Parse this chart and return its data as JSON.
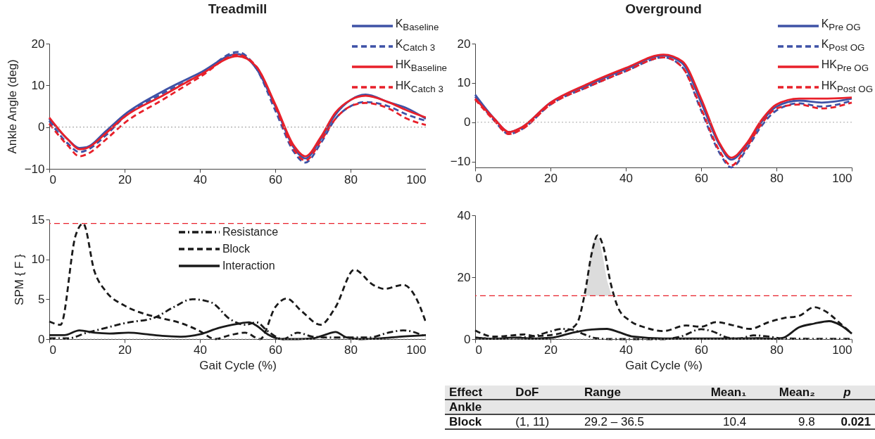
{
  "chart_data": [
    {
      "type": "line",
      "title": "Treadmill",
      "ylabel": "Ankle Angle (deg)",
      "xlim": [
        0,
        100
      ],
      "xticks": [
        0,
        20,
        40,
        60,
        80,
        100
      ],
      "ylim": [
        -10,
        20
      ],
      "yticks": [
        -10,
        0,
        10,
        20
      ],
      "grid": false,
      "legend": "top right",
      "ref_lines": [
        {
          "axis": "y",
          "value": 0,
          "color": "#aaaaaa",
          "line_style": "dotted"
        }
      ],
      "series": [
        {
          "name": "K$_{Baseline}$",
          "color": "#3e52a6",
          "line_style": "solid",
          "x": [
            0,
            5,
            8,
            10,
            15,
            20,
            30,
            40,
            50,
            55,
            60,
            65,
            68,
            72,
            76,
            80,
            84,
            90,
            95,
            100
          ],
          "values": [
            2,
            -3,
            -5,
            -4.8,
            -1,
            3,
            8.5,
            13,
            17.5,
            14,
            5,
            -5,
            -7.5,
            -3,
            3,
            6.5,
            7.8,
            6,
            4.5,
            2
          ]
        },
        {
          "name": "K$_{Catch 3}$",
          "color": "#3e52a6",
          "line_style": "dashed",
          "x": [
            0,
            5,
            8,
            10,
            15,
            20,
            30,
            40,
            50,
            55,
            60,
            65,
            68,
            72,
            76,
            80,
            84,
            90,
            95,
            100
          ],
          "values": [
            1.5,
            -4,
            -6,
            -5.5,
            -2,
            2.5,
            8,
            12.5,
            18,
            14,
            4,
            -6,
            -8.5,
            -4,
            2,
            5,
            6,
            5,
            3,
            1.5
          ]
        },
        {
          "name": "HK$_{Baseline}$",
          "color": "#e8202a",
          "line_style": "solid",
          "x": [
            0,
            5,
            8,
            10,
            15,
            20,
            30,
            40,
            50,
            55,
            60,
            65,
            68,
            72,
            76,
            80,
            84,
            90,
            95,
            100
          ],
          "values": [
            2.3,
            -3,
            -5.3,
            -5,
            -1.5,
            2.5,
            7.5,
            12.5,
            17,
            14.5,
            5.5,
            -4.5,
            -7,
            -2.5,
            3.5,
            6.5,
            7.5,
            6,
            4,
            2.3
          ]
        },
        {
          "name": "HK$_{Catch 3}$",
          "color": "#e8202a",
          "line_style": "dashed",
          "x": [
            0,
            5,
            8,
            10,
            15,
            20,
            30,
            40,
            50,
            55,
            60,
            65,
            68,
            72,
            76,
            80,
            84,
            90,
            95,
            100
          ],
          "values": [
            0.8,
            -4.5,
            -7,
            -6.5,
            -3,
            1,
            6.5,
            12,
            17.3,
            14.5,
            5,
            -5.5,
            -8,
            -3.5,
            2,
            5,
            5.8,
            4.5,
            2,
            0.5
          ]
        }
      ]
    },
    {
      "type": "line",
      "title": "Overground",
      "xlim": [
        0,
        100
      ],
      "xticks": [
        0,
        20,
        40,
        60,
        80,
        100
      ],
      "ylim": [
        -11.5,
        20
      ],
      "yticks": [
        -10,
        0,
        10,
        20
      ],
      "grid": false,
      "legend": "top right",
      "ref_lines": [
        {
          "axis": "y",
          "value": 0,
          "color": "#aaaaaa",
          "line_style": "dotted"
        }
      ],
      "series": [
        {
          "name": "K$_{Pre OG}$",
          "color": "#3e52a6",
          "line_style": "solid",
          "x": [
            0,
            5,
            9,
            12,
            20,
            30,
            40,
            50,
            55,
            60,
            65,
            68,
            72,
            76,
            80,
            86,
            92,
            100
          ],
          "values": [
            7,
            1,
            -2.5,
            -1.5,
            5,
            9.5,
            13.5,
            17,
            15,
            5,
            -6,
            -9.5,
            -6,
            0,
            4,
            5.5,
            5,
            6
          ]
        },
        {
          "name": "K$_{Post OG}$",
          "color": "#3e52a6",
          "line_style": "dashed",
          "x": [
            0,
            5,
            9,
            12,
            20,
            30,
            40,
            50,
            55,
            60,
            65,
            68,
            72,
            76,
            80,
            86,
            92,
            100
          ],
          "values": [
            6.5,
            0.5,
            -3,
            -2,
            4.5,
            9,
            13,
            16.5,
            14,
            3,
            -8,
            -11.5,
            -7,
            -1,
            3,
            4.8,
            4,
            5.5
          ]
        },
        {
          "name": "HK$_{Pre OG}$",
          "color": "#e8202a",
          "line_style": "solid",
          "x": [
            0,
            5,
            9,
            12,
            20,
            30,
            40,
            50,
            55,
            60,
            65,
            68,
            72,
            76,
            80,
            86,
            92,
            100
          ],
          "values": [
            6,
            1,
            -2.5,
            -1.5,
            5,
            9.8,
            13.8,
            17.2,
            15.5,
            6,
            -5.5,
            -9,
            -5.5,
            0.5,
            4.5,
            6,
            6,
            6.3
          ]
        },
        {
          "name": "HK$_{Post OG}$",
          "color": "#e8202a",
          "line_style": "dashed",
          "x": [
            0,
            5,
            9,
            12,
            20,
            30,
            40,
            50,
            55,
            60,
            65,
            68,
            72,
            76,
            80,
            86,
            92,
            100
          ],
          "values": [
            5.8,
            0.5,
            -3,
            -2,
            4.5,
            9,
            13,
            16.5,
            14,
            3.5,
            -7.5,
            -11,
            -6.5,
            -0.5,
            3.5,
            4.5,
            3.5,
            5
          ]
        }
      ]
    },
    {
      "type": "line",
      "xlabel": "Gait Cycle (%)",
      "ylabel": "SPM { F }",
      "xlim": [
        0,
        100
      ],
      "xticks": [
        0,
        20,
        40,
        60,
        80,
        100
      ],
      "ylim": [
        0,
        15
      ],
      "yticks": [
        0,
        5,
        10,
        15
      ],
      "grid": false,
      "legend": "top",
      "ref_lines": [
        {
          "axis": "y",
          "value": 0,
          "color": "#aaaaaa",
          "line_style": "dotted"
        },
        {
          "axis": "y",
          "value": 14.5,
          "color": "#e8202a",
          "line_style": "dashed"
        }
      ],
      "series": [
        {
          "name": "Resistance",
          "color": "#1a1a1a",
          "line_style": "dashdot",
          "x": [
            0,
            5,
            10,
            15,
            20,
            28,
            33,
            38,
            43,
            48,
            52,
            55,
            58,
            62,
            66,
            70,
            75,
            80,
            85,
            90,
            94,
            100
          ],
          "values": [
            0.1,
            0.1,
            0.8,
            1.4,
            2,
            2.7,
            4,
            5,
            4.6,
            2.5,
            1.8,
            2.1,
            1,
            0,
            0.8,
            0.3,
            0.2,
            0.2,
            0.2,
            0.8,
            1.1,
            0.3
          ]
        },
        {
          "name": "Block",
          "color": "#1a1a1a",
          "line_style": "dashed",
          "x": [
            0,
            3,
            7,
            9,
            12,
            15,
            20,
            25,
            30,
            35,
            40,
            44,
            48,
            52,
            56,
            60,
            63,
            67,
            72,
            76,
            81,
            86,
            89,
            94,
            97,
            100
          ],
          "values": [
            2.2,
            1.8,
            13,
            14.5,
            8.5,
            6,
            4.2,
            3.2,
            2.6,
            2,
            1,
            0,
            0.5,
            0.8,
            0,
            4,
            5.1,
            3.5,
            1.8,
            4,
            8.7,
            6.8,
            6.3,
            6.8,
            5.5,
            2.1
          ]
        },
        {
          "name": "Interaction",
          "color": "#1a1a1a",
          "line_style": "solid",
          "x": [
            0,
            4,
            8,
            12,
            16,
            21,
            26,
            30,
            35,
            40,
            45,
            50,
            53,
            55,
            58,
            62,
            66,
            70,
            73,
            76,
            79,
            83,
            88,
            93,
            100
          ],
          "values": [
            0.5,
            0.5,
            1.1,
            0.8,
            0.7,
            0.8,
            0.6,
            0.4,
            0.3,
            0.6,
            1.4,
            1.9,
            2.1,
            1.7,
            0.6,
            0,
            0,
            0.1,
            0.5,
            0.9,
            0.2,
            0,
            0.1,
            0.3,
            0.5
          ]
        }
      ]
    },
    {
      "type": "line",
      "xlabel": "Gait Cycle (%)",
      "xlim": [
        0,
        100
      ],
      "xticks": [
        0,
        20,
        40,
        60,
        80,
        100
      ],
      "ylim": [
        0,
        40
      ],
      "yticks": [
        0,
        20,
        40
      ],
      "grid": false,
      "ref_lines": [
        {
          "axis": "y",
          "value": 0,
          "color": "#aaaaaa",
          "line_style": "dotted"
        },
        {
          "axis": "y",
          "value": 14,
          "color": "#e8202a",
          "line_style": "dashed"
        }
      ],
      "series": [
        {
          "type": "area",
          "color": "#dcdcdc",
          "x": [
            29.2,
            30,
            31,
            32,
            33,
            34,
            35,
            36,
            36.5
          ],
          "values": [
            14,
            22,
            30,
            33.5,
            32,
            26,
            19,
            15,
            14
          ]
        },
        {
          "color": "#1a1a1a",
          "line_style": "dashdot",
          "x": [
            0,
            5,
            10,
            15,
            20,
            23,
            26,
            29,
            32,
            36,
            40,
            50,
            55,
            60,
            63,
            67,
            70,
            74,
            78,
            82,
            90,
            100
          ],
          "values": [
            0.5,
            0.1,
            0.4,
            0.8,
            2.5,
            3.3,
            3,
            1.5,
            0.3,
            0,
            0,
            0,
            1,
            3.2,
            2.5,
            0.5,
            0.2,
            1.2,
            0.8,
            0.2,
            0.1,
            0.1
          ]
        },
        {
          "color": "#1a1a1a",
          "line_style": "dashed",
          "x": [
            0,
            5,
            10,
            13,
            16,
            20,
            24,
            27,
            29,
            31,
            32.5,
            34,
            36,
            38,
            41,
            45,
            50,
            56,
            60,
            64,
            68,
            73,
            78,
            82,
            86,
            90,
            93,
            97,
            100
          ],
          "values": [
            2.8,
            0.8,
            1.2,
            1.5,
            1,
            1.3,
            2.5,
            5,
            14,
            28,
            33.5,
            30,
            18,
            10,
            6,
            3.8,
            2.6,
            4.4,
            4,
            5.5,
            4.6,
            3.3,
            5.5,
            6.8,
            7.5,
            10.3,
            9,
            5,
            1.8
          ]
        },
        {
          "color": "#1a1a1a",
          "line_style": "solid",
          "x": [
            0,
            5,
            10,
            15,
            20,
            25,
            28,
            31,
            35,
            38,
            42,
            50,
            60,
            70,
            75,
            80,
            82,
            86,
            90,
            94,
            97,
            100
          ],
          "values": [
            0.5,
            0.1,
            0.5,
            0.2,
            0.4,
            1.8,
            2.6,
            3.1,
            3.3,
            2.3,
            0.8,
            0.2,
            0.2,
            0.2,
            0.3,
            0.1,
            0.5,
            3.8,
            5,
            5.8,
            4.5,
            1.8
          ]
        }
      ]
    },
    {
      "type": "other",
      "annotations": [
        "Effect",
        "DoF",
        "Range",
        "Mean₁",
        "Mean₂",
        "p",
        "Ankle",
        "Block",
        "(1, 11)",
        "29.2 – 36.5",
        "10.4",
        "9.8",
        "0.021"
      ]
    }
  ]
}
